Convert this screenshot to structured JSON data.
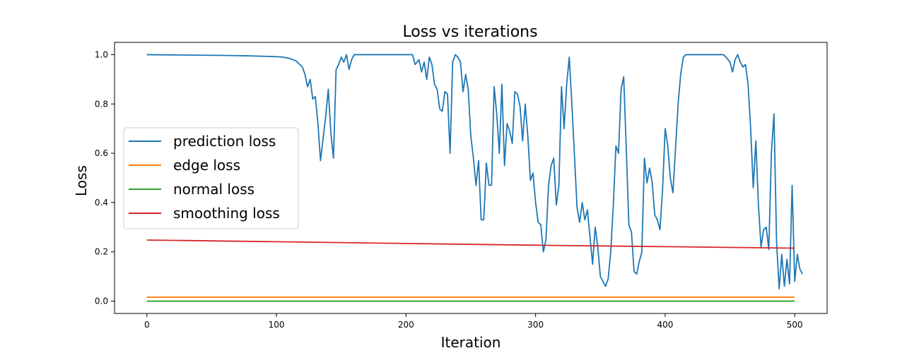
{
  "chart_data": {
    "type": "line",
    "title": "Loss vs iterations",
    "xlabel": "Iteration",
    "ylabel": "Loss",
    "xlim": [
      -25,
      525
    ],
    "ylim": [
      -0.05,
      1.05
    ],
    "xticks": [
      0,
      100,
      200,
      300,
      400,
      500
    ],
    "yticks": [
      0.0,
      0.2,
      0.4,
      0.6,
      0.8,
      1.0
    ],
    "ytick_labels": [
      "0.0",
      "0.2",
      "0.4",
      "0.6",
      "0.8",
      "1.0"
    ],
    "grid": false,
    "legend_position": "center-left",
    "series": [
      {
        "name": "prediction loss",
        "color": "#1f77b4",
        "points": [
          [
            0,
            1.0
          ],
          [
            20,
            0.999
          ],
          [
            40,
            0.998
          ],
          [
            60,
            0.997
          ],
          [
            80,
            0.995
          ],
          [
            100,
            0.992
          ],
          [
            105,
            0.99
          ],
          [
            110,
            0.985
          ],
          [
            115,
            0.975
          ],
          [
            118,
            0.96
          ],
          [
            120,
            0.95
          ],
          [
            122,
            0.92
          ],
          [
            124,
            0.87
          ],
          [
            126,
            0.9
          ],
          [
            128,
            0.82
          ],
          [
            130,
            0.83
          ],
          [
            132,
            0.72
          ],
          [
            134,
            0.57
          ],
          [
            136,
            0.66
          ],
          [
            138,
            0.75
          ],
          [
            140,
            0.86
          ],
          [
            142,
            0.68
          ],
          [
            144,
            0.58
          ],
          [
            146,
            0.94
          ],
          [
            148,
            0.96
          ],
          [
            150,
            0.99
          ],
          [
            152,
            0.97
          ],
          [
            154,
            1.0
          ],
          [
            156,
            0.94
          ],
          [
            158,
            0.98
          ],
          [
            160,
            1.0
          ],
          [
            170,
            1.0
          ],
          [
            185,
            1.0
          ],
          [
            200,
            1.0
          ],
          [
            205,
            1.0
          ],
          [
            207,
            0.96
          ],
          [
            210,
            0.98
          ],
          [
            212,
            0.93
          ],
          [
            214,
            0.97
          ],
          [
            216,
            0.9
          ],
          [
            218,
            0.99
          ],
          [
            220,
            0.96
          ],
          [
            222,
            0.88
          ],
          [
            224,
            0.86
          ],
          [
            226,
            0.78
          ],
          [
            228,
            0.77
          ],
          [
            230,
            0.85
          ],
          [
            232,
            0.84
          ],
          [
            234,
            0.6
          ],
          [
            236,
            0.97
          ],
          [
            238,
            1.0
          ],
          [
            240,
            0.99
          ],
          [
            242,
            0.97
          ],
          [
            244,
            0.85
          ],
          [
            246,
            0.92
          ],
          [
            248,
            0.86
          ],
          [
            250,
            0.67
          ],
          [
            252,
            0.58
          ],
          [
            254,
            0.47
          ],
          [
            256,
            0.57
          ],
          [
            258,
            0.33
          ],
          [
            260,
            0.33
          ],
          [
            262,
            0.56
          ],
          [
            264,
            0.47
          ],
          [
            266,
            0.47
          ],
          [
            268,
            0.87
          ],
          [
            270,
            0.76
          ],
          [
            272,
            0.6
          ],
          [
            274,
            0.88
          ],
          [
            276,
            0.55
          ],
          [
            278,
            0.72
          ],
          [
            280,
            0.69
          ],
          [
            282,
            0.64
          ],
          [
            284,
            0.85
          ],
          [
            286,
            0.84
          ],
          [
            288,
            0.79
          ],
          [
            290,
            0.65
          ],
          [
            292,
            0.8
          ],
          [
            294,
            0.67
          ],
          [
            296,
            0.49
          ],
          [
            298,
            0.52
          ],
          [
            300,
            0.4
          ],
          [
            302,
            0.32
          ],
          [
            304,
            0.31
          ],
          [
            306,
            0.2
          ],
          [
            308,
            0.25
          ],
          [
            310,
            0.47
          ],
          [
            312,
            0.55
          ],
          [
            314,
            0.58
          ],
          [
            316,
            0.39
          ],
          [
            318,
            0.47
          ],
          [
            320,
            0.87
          ],
          [
            322,
            0.7
          ],
          [
            324,
            0.88
          ],
          [
            326,
            0.99
          ],
          [
            328,
            0.8
          ],
          [
            330,
            0.59
          ],
          [
            332,
            0.38
          ],
          [
            334,
            0.32
          ],
          [
            336,
            0.4
          ],
          [
            338,
            0.33
          ],
          [
            340,
            0.37
          ],
          [
            342,
            0.26
          ],
          [
            344,
            0.15
          ],
          [
            346,
            0.3
          ],
          [
            348,
            0.22
          ],
          [
            350,
            0.1
          ],
          [
            352,
            0.08
          ],
          [
            354,
            0.06
          ],
          [
            356,
            0.09
          ],
          [
            358,
            0.2
          ],
          [
            360,
            0.39
          ],
          [
            362,
            0.63
          ],
          [
            364,
            0.6
          ],
          [
            366,
            0.86
          ],
          [
            368,
            0.91
          ],
          [
            370,
            0.62
          ],
          [
            372,
            0.31
          ],
          [
            374,
            0.28
          ],
          [
            376,
            0.12
          ],
          [
            378,
            0.11
          ],
          [
            380,
            0.16
          ],
          [
            382,
            0.2
          ],
          [
            384,
            0.58
          ],
          [
            386,
            0.48
          ],
          [
            388,
            0.54
          ],
          [
            390,
            0.48
          ],
          [
            392,
            0.35
          ],
          [
            394,
            0.33
          ],
          [
            396,
            0.29
          ],
          [
            398,
            0.45
          ],
          [
            400,
            0.7
          ],
          [
            402,
            0.63
          ],
          [
            404,
            0.5
          ],
          [
            406,
            0.44
          ],
          [
            408,
            0.62
          ],
          [
            410,
            0.8
          ],
          [
            412,
            0.92
          ],
          [
            414,
            0.99
          ],
          [
            416,
            1.0
          ],
          [
            425,
            1.0
          ],
          [
            440,
            1.0
          ],
          [
            445,
            1.0
          ],
          [
            447,
            0.99
          ],
          [
            450,
            0.97
          ],
          [
            452,
            0.93
          ],
          [
            454,
            0.98
          ],
          [
            456,
            1.0
          ],
          [
            458,
            0.97
          ],
          [
            460,
            0.95
          ],
          [
            462,
            0.96
          ],
          [
            464,
            0.88
          ],
          [
            466,
            0.7
          ],
          [
            468,
            0.46
          ],
          [
            470,
            0.65
          ],
          [
            472,
            0.39
          ],
          [
            474,
            0.22
          ],
          [
            476,
            0.29
          ],
          [
            478,
            0.3
          ],
          [
            480,
            0.21
          ],
          [
            482,
            0.6
          ],
          [
            484,
            0.76
          ],
          [
            486,
            0.24
          ],
          [
            488,
            0.05
          ],
          [
            490,
            0.19
          ],
          [
            492,
            0.06
          ],
          [
            494,
            0.17
          ],
          [
            496,
            0.07
          ],
          [
            498,
            0.47
          ],
          [
            500,
            0.08
          ],
          [
            502,
            0.19
          ],
          [
            504,
            0.13
          ],
          [
            506,
            0.11
          ]
        ]
      },
      {
        "name": "edge loss",
        "color": "#ff7f0e",
        "points": [
          [
            0,
            0.016
          ],
          [
            500,
            0.016
          ]
        ]
      },
      {
        "name": "normal loss",
        "color": "#2ca02c",
        "points": [
          [
            0,
            0.0
          ],
          [
            500,
            0.0
          ]
        ]
      },
      {
        "name": "smoothing loss",
        "color": "#d62728",
        "points": [
          [
            0,
            0.248
          ],
          [
            100,
            0.241
          ],
          [
            200,
            0.234
          ],
          [
            300,
            0.227
          ],
          [
            400,
            0.221
          ],
          [
            500,
            0.215
          ]
        ]
      }
    ]
  }
}
